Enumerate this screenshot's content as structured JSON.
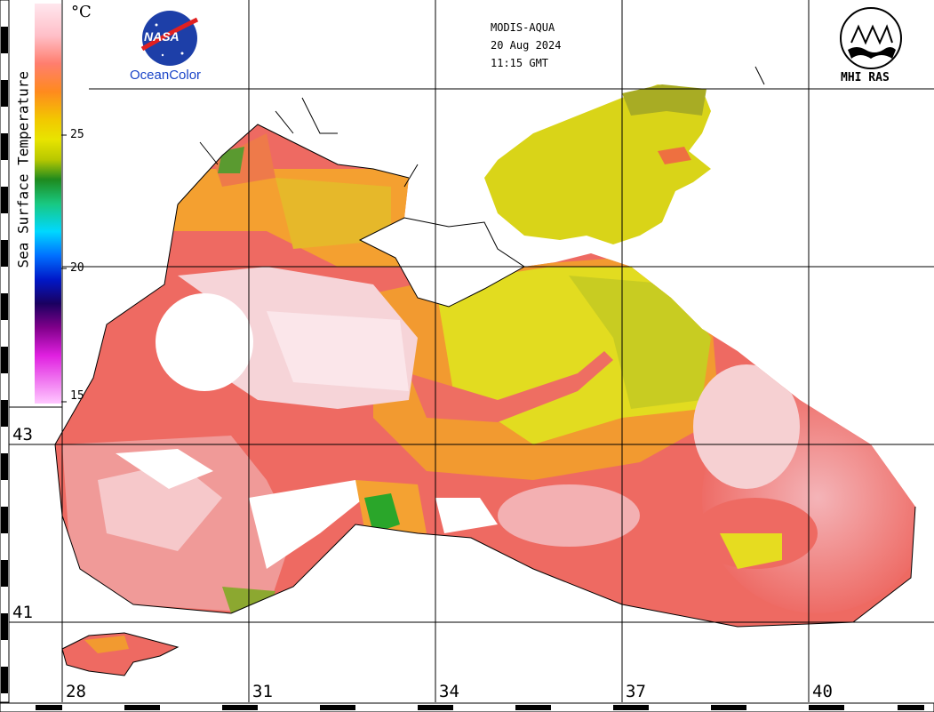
{
  "header": {
    "sensor": "MODIS-AQUA",
    "date": "20 Aug 2024",
    "time": "11:15 GMT"
  },
  "logos": {
    "left_logo_text": "NASA",
    "left_caption": "OceanColor",
    "right_caption": "MHI RAS"
  },
  "colorbar": {
    "title": "Sea Surface Temperature",
    "unit": "°C",
    "ticks": [
      "25",
      "20",
      "15"
    ],
    "colors": [
      "#ffe7ee",
      "#ffbfc8",
      "#ff8c82",
      "#ff6a3a",
      "#ff9a1e",
      "#f2c800",
      "#e8e400",
      "#b8c800",
      "#1e8a1e",
      "#19c880",
      "#00d8ff",
      "#0070ff",
      "#0018c8",
      "#400080",
      "#9a009a",
      "#ff44ff",
      "#ffc8ff"
    ]
  },
  "axes": {
    "latitudes": [
      "43",
      "41"
    ],
    "longitudes": [
      "28",
      "31",
      "34",
      "37",
      "40"
    ]
  },
  "palette": {
    "warmest": "#fff2f4",
    "very_warm": "#f7a8aa",
    "warm": "#ee6a62",
    "orange": "#f6a232",
    "yellow": "#e8e418",
    "olive": "#bcc424",
    "green": "#2aa62a"
  }
}
